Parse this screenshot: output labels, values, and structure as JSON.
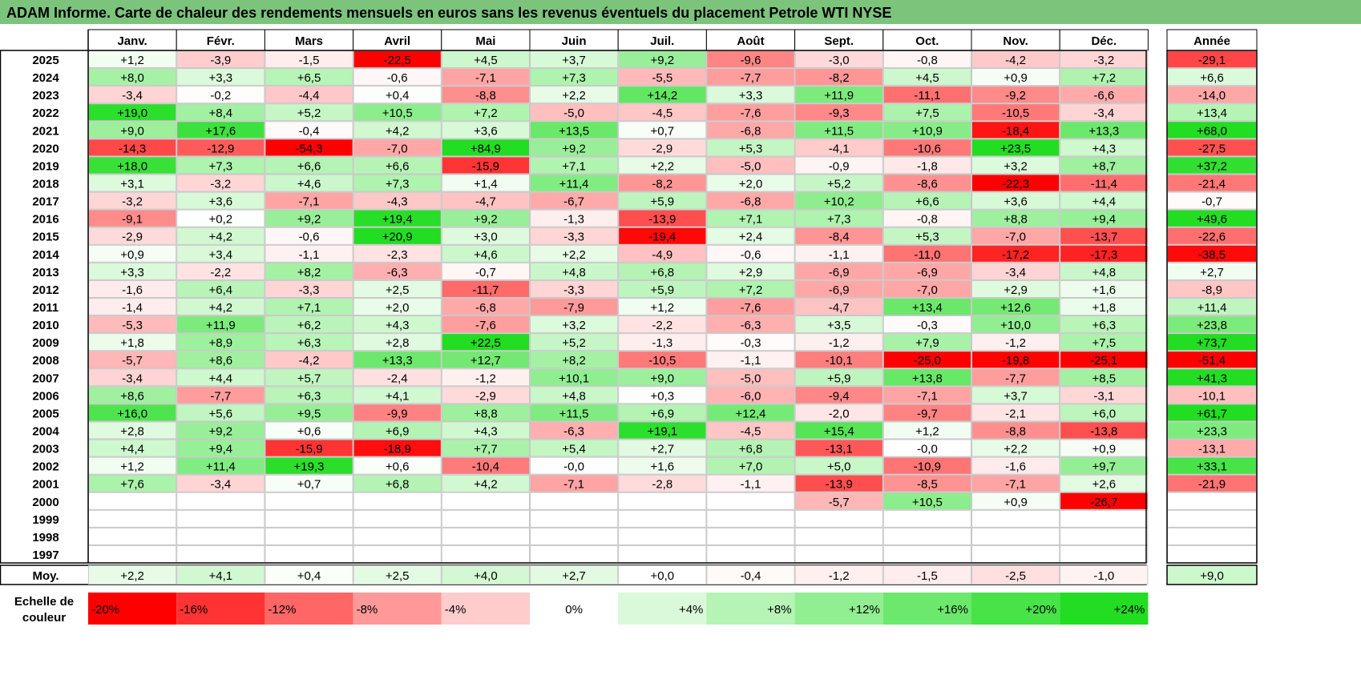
{
  "title": "ADAM Informe. Carte de chaleur des rendements mensuels en euros sans les revenus éventuels du placement Petrole WTI NYSE",
  "colors": {
    "title_bar": "#7cc47c",
    "negative": "#ff0000",
    "neutral": "#ffffff",
    "positive": "#22dd22"
  },
  "chart_data": {
    "type": "heatmap",
    "months": [
      "Janv.",
      "Févr.",
      "Mars",
      "Avril",
      "Mai",
      "Juin",
      "Juil.",
      "Août",
      "Sept.",
      "Oct.",
      "Nov.",
      "Déc."
    ],
    "year_header": "Année",
    "rows": [
      {
        "year": "2025",
        "values": [
          "+1,2",
          "-3,9",
          "-1,5",
          "-22,5",
          "+4,5",
          "+3,7",
          "+9,2",
          "-9,6",
          "-3,0",
          "-0,8",
          "-4,2",
          "-3,2"
        ],
        "annual": "-29,1"
      },
      {
        "year": "2024",
        "values": [
          "+8,0",
          "+3,3",
          "+6,5",
          "-0,6",
          "-7,1",
          "+7,3",
          "-5,5",
          "-7,7",
          "-8,2",
          "+4,5",
          "+0,9",
          "+7,2"
        ],
        "annual": "+6,6"
      },
      {
        "year": "2023",
        "values": [
          "-3,4",
          "-0,2",
          "-4,4",
          "+0,4",
          "-8,8",
          "+2,2",
          "+14,2",
          "+3,3",
          "+11,9",
          "-11,1",
          "-9,2",
          "-6,6"
        ],
        "annual": "-14,0"
      },
      {
        "year": "2022",
        "values": [
          "+19,0",
          "+8,4",
          "+5,2",
          "+10,5",
          "+7,2",
          "-5,0",
          "-4,5",
          "-7,6",
          "-9,3",
          "+7,5",
          "-10,5",
          "-3,4"
        ],
        "annual": "+13,4"
      },
      {
        "year": "2021",
        "values": [
          "+9,0",
          "+17,6",
          "-0,4",
          "+4,2",
          "+3,6",
          "+13,5",
          "+0,7",
          "-6,8",
          "+11,5",
          "+10,9",
          "-18,4",
          "+13,3"
        ],
        "annual": "+68,0"
      },
      {
        "year": "2020",
        "values": [
          "-14,3",
          "-12,9",
          "-54,3",
          "-7,0",
          "+84,9",
          "+9,2",
          "-2,9",
          "+5,3",
          "-4,1",
          "-10,6",
          "+23,5",
          "+4,3"
        ],
        "annual": "-27,5"
      },
      {
        "year": "2019",
        "values": [
          "+18,0",
          "+7,3",
          "+6,6",
          "+6,6",
          "-15,9",
          "+7,1",
          "+2,2",
          "-5,0",
          "-0,9",
          "-1,8",
          "+3,2",
          "+8,7"
        ],
        "annual": "+37,2"
      },
      {
        "year": "2018",
        "values": [
          "+3,1",
          "-3,2",
          "+4,6",
          "+7,3",
          "+1,4",
          "+11,4",
          "-8,2",
          "+2,0",
          "+5,2",
          "-8,6",
          "-22,3",
          "-11,4"
        ],
        "annual": "-21,4"
      },
      {
        "year": "2017",
        "values": [
          "-3,2",
          "+3,6",
          "-7,1",
          "-4,3",
          "-4,7",
          "-6,7",
          "+5,9",
          "-6,8",
          "+10,2",
          "+6,6",
          "+3,6",
          "+4,4"
        ],
        "annual": "-0,7"
      },
      {
        "year": "2016",
        "values": [
          "-9,1",
          "+0,2",
          "+9,2",
          "+19,4",
          "+9,2",
          "-1,3",
          "-13,9",
          "+7,1",
          "+7,3",
          "-0,8",
          "+8,8",
          "+9,4"
        ],
        "annual": "+49,6"
      },
      {
        "year": "2015",
        "values": [
          "-2,9",
          "+4,2",
          "-0,6",
          "+20,9",
          "+3,0",
          "-3,3",
          "-19,4",
          "+2,4",
          "-8,4",
          "+5,3",
          "-7,0",
          "-13,7"
        ],
        "annual": "-22,6"
      },
      {
        "year": "2014",
        "values": [
          "+0,9",
          "+3,4",
          "-1,1",
          "-2,3",
          "+4,6",
          "+2,2",
          "-4,9",
          "-0,6",
          "-1,1",
          "-11,0",
          "-17,2",
          "-17,3"
        ],
        "annual": "-38,5"
      },
      {
        "year": "2013",
        "values": [
          "+3,3",
          "-2,2",
          "+8,2",
          "-6,3",
          "-0,7",
          "+4,8",
          "+6,8",
          "+2,9",
          "-6,9",
          "-6,9",
          "-3,4",
          "+4,8"
        ],
        "annual": "+2,7"
      },
      {
        "year": "2012",
        "values": [
          "-1,6",
          "+6,4",
          "-3,3",
          "+2,5",
          "-11,7",
          "-3,3",
          "+5,9",
          "+7,2",
          "-6,9",
          "-7,0",
          "+2,9",
          "+1,6"
        ],
        "annual": "-8,9"
      },
      {
        "year": "2011",
        "values": [
          "-1,4",
          "+4,2",
          "+7,1",
          "+2,0",
          "-6,8",
          "-7,9",
          "+1,2",
          "-7,6",
          "-4,7",
          "+13,4",
          "+12,6",
          "+1,8"
        ],
        "annual": "+11,4"
      },
      {
        "year": "2010",
        "values": [
          "-5,3",
          "+11,9",
          "+6,2",
          "+4,3",
          "-7,6",
          "+3,2",
          "-2,2",
          "-6,3",
          "+3,5",
          "-0,3",
          "+10,0",
          "+6,3"
        ],
        "annual": "+23,8"
      },
      {
        "year": "2009",
        "values": [
          "+1,8",
          "+8,9",
          "+6,3",
          "+2,8",
          "+22,5",
          "+5,2",
          "-1,3",
          "-0,3",
          "-1,2",
          "+7,9",
          "-1,2",
          "+7,5"
        ],
        "annual": "+73,7"
      },
      {
        "year": "2008",
        "values": [
          "-5,7",
          "+8,6",
          "-4,2",
          "+13,3",
          "+12,7",
          "+8,2",
          "-10,5",
          "-1,1",
          "-10,1",
          "-25,0",
          "-19,8",
          "-25,1"
        ],
        "annual": "-51,4"
      },
      {
        "year": "2007",
        "values": [
          "-3,4",
          "+4,4",
          "+5,7",
          "-2,4",
          "-1,2",
          "+10,1",
          "+9,0",
          "-5,0",
          "+5,9",
          "+13,8",
          "-7,7",
          "+8,5"
        ],
        "annual": "+41,3"
      },
      {
        "year": "2006",
        "values": [
          "+8,6",
          "-7,7",
          "+6,3",
          "+4,1",
          "-2,9",
          "+4,8",
          "+0,3",
          "-6,0",
          "-9,4",
          "-7,1",
          "+3,7",
          "-3,1"
        ],
        "annual": "-10,1"
      },
      {
        "year": "2005",
        "values": [
          "+16,0",
          "+5,6",
          "+9,5",
          "-9,9",
          "+8,8",
          "+11,5",
          "+6,9",
          "+12,4",
          "-2,0",
          "-9,7",
          "-2,1",
          "+6,0"
        ],
        "annual": "+61,7"
      },
      {
        "year": "2004",
        "values": [
          "+2,8",
          "+9,2",
          "+0,6",
          "+6,9",
          "+4,3",
          "-6,3",
          "+19,1",
          "-4,5",
          "+15,4",
          "+1,2",
          "-8,8",
          "-13,8"
        ],
        "annual": "+23,3"
      },
      {
        "year": "2003",
        "values": [
          "+4,4",
          "+9,4",
          "-15,9",
          "-18,9",
          "+7,7",
          "+5,4",
          "+2,7",
          "+6,8",
          "-13,1",
          "-0,0",
          "+2,2",
          "+0,9"
        ],
        "annual": "-13,1"
      },
      {
        "year": "2002",
        "values": [
          "+1,2",
          "+11,4",
          "+19,3",
          "+0,6",
          "-10,4",
          "-0,0",
          "+1,6",
          "+7,0",
          "+5,0",
          "-10,9",
          "-1,6",
          "+9,7"
        ],
        "annual": "+33,1"
      },
      {
        "year": "2001",
        "values": [
          "+7,6",
          "-3,4",
          "+0,7",
          "+6,8",
          "+4,2",
          "-7,1",
          "-2,8",
          "-1,1",
          "-13,9",
          "-8,5",
          "-7,1",
          "+2,6"
        ],
        "annual": "-21,9"
      },
      {
        "year": "2000",
        "values": [
          "",
          "",
          "",
          "",
          "",
          "",
          "",
          "",
          "-5,7",
          "+10,5",
          "+0,9",
          "-26,7"
        ],
        "annual": ""
      },
      {
        "year": "1999",
        "values": [
          "",
          "",
          "",
          "",
          "",
          "",
          "",
          "",
          "",
          "",
          "",
          ""
        ],
        "annual": ""
      },
      {
        "year": "1998",
        "values": [
          "",
          "",
          "",
          "",
          "",
          "",
          "",
          "",
          "",
          "",
          "",
          ""
        ],
        "annual": ""
      },
      {
        "year": "1997",
        "values": [
          "",
          "",
          "",
          "",
          "",
          "",
          "",
          "",
          "",
          "",
          "",
          ""
        ],
        "annual": ""
      }
    ],
    "average": {
      "label": "Moy.",
      "values": [
        "+2,2",
        "+4,1",
        "+0,4",
        "+2,5",
        "+4,0",
        "+2,7",
        "+0,0",
        "-0,4",
        "-1,2",
        "-1,5",
        "-2,5",
        "-1,0"
      ],
      "annual": "+9,0"
    },
    "color_scale": {
      "label_line1": "Echelle de",
      "label_line2": "couleur",
      "stops": [
        "-20%",
        "-16%",
        "-12%",
        "-8%",
        "-4%",
        "0%",
        "+4%",
        "+8%",
        "+12%",
        "+16%",
        "+20%",
        "+24%"
      ]
    }
  }
}
